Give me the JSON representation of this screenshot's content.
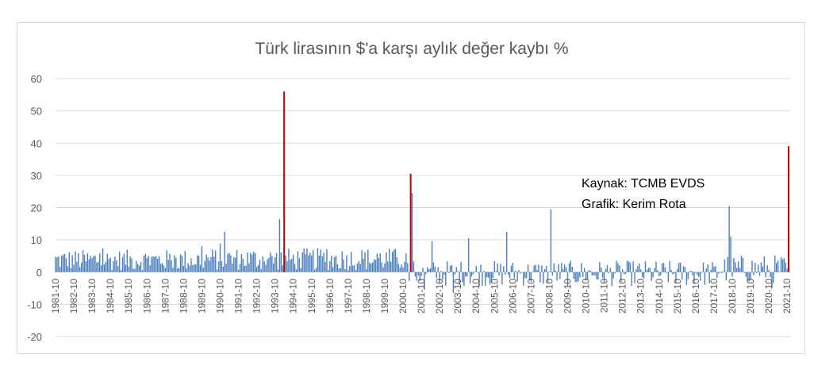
{
  "chart_data": {
    "type": "bar",
    "title": "Türk lirasının $'a karşı aylık değer kaybı %",
    "xlabel": "",
    "ylabel": "",
    "ylim": [
      -20,
      60
    ],
    "yticks": [
      -20,
      -10,
      0,
      10,
      20,
      30,
      40,
      50,
      60
    ],
    "x_start": "1981-10",
    "x_end": "2021-10",
    "x_tick_labels": [
      "1981-10",
      "1982-10",
      "1983-10",
      "1984-10",
      "1985-10",
      "1986-10",
      "1987-10",
      "1988-10",
      "1989-10",
      "1990-10",
      "1991-10",
      "1992-10",
      "1993-10",
      "1994-10",
      "1995-10",
      "1996-10",
      "1997-10",
      "1998-10",
      "1999-10",
      "2000-10",
      "2001-10",
      "2002-10",
      "2003-10",
      "2004-10",
      "2005-10",
      "2006-10",
      "2007-10",
      "2008-10",
      "2009-10",
      "2010-10",
      "2011-10",
      "2012-10",
      "2013-10",
      "2014-10",
      "2015-10",
      "2016-10",
      "2017-10",
      "2018-10",
      "2019-10",
      "2020-10",
      "2021-10"
    ],
    "grid": true,
    "legend": "none",
    "colors": {
      "bar": "#4f81bd",
      "highlight": "#c00000",
      "grid": "#d9d9d9",
      "text": "#595959"
    },
    "highlights": [
      {
        "date": "1994-04",
        "value": 56
      },
      {
        "date": "2001-03",
        "value": 30.5
      },
      {
        "date": "2021-11",
        "value": 39
      }
    ],
    "notable_values": [
      {
        "date": "1991-01",
        "value": 12.5
      },
      {
        "date": "1994-01",
        "value": 16.5
      },
      {
        "date": "2001-04",
        "value": 24.5
      },
      {
        "date": "2002-05",
        "value": 9.5
      },
      {
        "date": "2004-05",
        "value": 10.5
      },
      {
        "date": "2006-06",
        "value": 12.5
      },
      {
        "date": "2008-11",
        "value": 19.5
      },
      {
        "date": "2018-08",
        "value": 20.5
      },
      {
        "date": "2018-09",
        "value": 11
      },
      {
        "date": "2003-07",
        "value": -6.5
      },
      {
        "date": "2001-12",
        "value": -5.5
      },
      {
        "date": "2020-12",
        "value": -5
      }
    ],
    "annotations": [
      "Kaynak: TCMB EVDS",
      "Grafik: Kerim Rota"
    ]
  }
}
